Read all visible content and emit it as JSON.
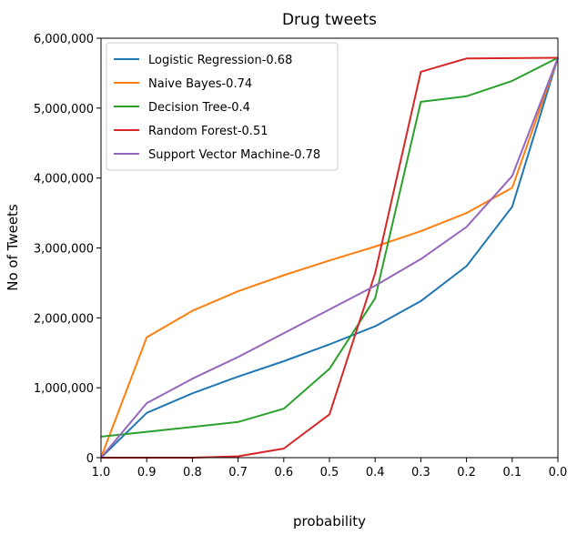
{
  "chart_data": {
    "type": "line",
    "title": "Drug tweets",
    "xlabel": "probability",
    "ylabel": "No of Tweets",
    "x": [
      1.0,
      0.9,
      0.8,
      0.7,
      0.6,
      0.5,
      0.4,
      0.3,
      0.2,
      0.1,
      0.0
    ],
    "x_ticks": [
      "1.0",
      "0.9",
      "0.8",
      "0.7",
      "0.6",
      "0.5",
      "0.4",
      "0.3",
      "0.2",
      "0.1",
      "0.0"
    ],
    "xlim": [
      1.0,
      0.0
    ],
    "ylim": [
      0,
      6000000
    ],
    "y_ticks": [
      0,
      1000000,
      2000000,
      3000000,
      4000000,
      5000000,
      6000000
    ],
    "y_tick_labels": [
      "0",
      "1,000,000",
      "2,000,000",
      "3,000,000",
      "4,000,000",
      "5,000,000",
      "6,000,000"
    ],
    "grid": false,
    "legend_position": "top-left",
    "series": [
      {
        "name": "Logistic Regression-0.68",
        "color": "#1f77b4",
        "values": [
          0,
          640000,
          920000,
          1160000,
          1380000,
          1620000,
          1880000,
          2240000,
          2740000,
          3590000,
          5720000
        ]
      },
      {
        "name": "Naive Bayes-0.74",
        "color": "#ff7f0e",
        "values": [
          0,
          1720000,
          2100000,
          2380000,
          2610000,
          2820000,
          3020000,
          3240000,
          3500000,
          3860000,
          5720000
        ]
      },
      {
        "name": "Decision Tree-0.4",
        "color": "#2ca02c",
        "values": [
          300000,
          370000,
          440000,
          510000,
          700000,
          1270000,
          2280000,
          5090000,
          5170000,
          5390000,
          5720000
        ]
      },
      {
        "name": "Random Forest-0.51",
        "color": "#d62728",
        "values": [
          0,
          0,
          0,
          20000,
          130000,
          620000,
          2640000,
          5520000,
          5710000,
          5715000,
          5720000
        ]
      },
      {
        "name": "Support Vector Machine-0.78",
        "color": "#9467bd",
        "values": [
          0,
          780000,
          1130000,
          1440000,
          1780000,
          2120000,
          2460000,
          2840000,
          3300000,
          4030000,
          5720000
        ]
      }
    ]
  }
}
